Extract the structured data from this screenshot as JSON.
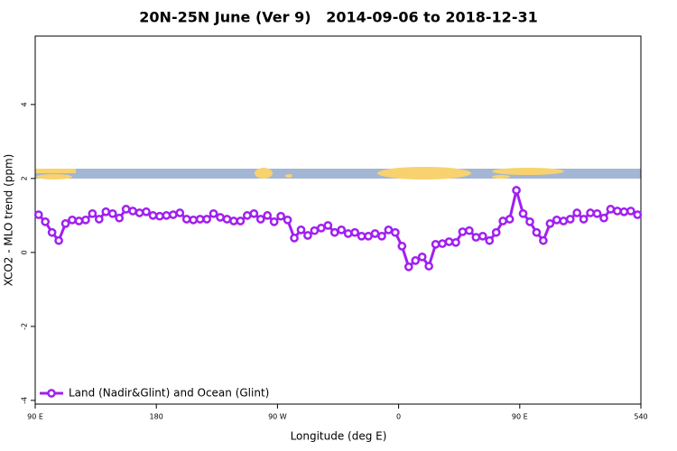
{
  "chart_data": {
    "type": "line",
    "title": "20N-25N June (Ver 9)   2014-09-06 to 2018-12-31",
    "xlabel": "Longitude (deg E)",
    "ylabel": "XCO2 - MLO trend (ppm)",
    "xlim": [
      90,
      540
    ],
    "ylim": [
      -4.1,
      5.85
    ],
    "xticks": [
      {
        "value": 90,
        "label": "90 E"
      },
      180,
      {
        "value": 270,
        "label": "90 W"
      },
      {
        "value": 360,
        "label": "0"
      },
      {
        "value": 450,
        "label": "90 E"
      },
      540
    ],
    "yticks": [
      4,
      2,
      0,
      -2,
      -4
    ],
    "legend": "bottom-left",
    "x": [
      92.5,
      97.5,
      102.5,
      107.5,
      112.5,
      117.5,
      122.5,
      127.5,
      132.5,
      137.5,
      142.5,
      147.5,
      152.5,
      157.5,
      162.5,
      167.5,
      172.5,
      177.5,
      182.5,
      187.5,
      192.5,
      197.5,
      202.5,
      207.5,
      212.5,
      217.5,
      222.5,
      227.5,
      232.5,
      237.5,
      242.5,
      247.5,
      252.5,
      257.5,
      262.5,
      267.5,
      272.5,
      277.5,
      282.5,
      287.5,
      292.5,
      297.5,
      302.5,
      307.5,
      312.5,
      317.5,
      322.5,
      327.5,
      332.5,
      337.5,
      342.5,
      347.5,
      352.5,
      357.5,
      362.5,
      367.5,
      372.5,
      377.5,
      382.5,
      387.5,
      392.5,
      397.5,
      402.5,
      407.5,
      412.5,
      417.5,
      422.5,
      427.5,
      432.5,
      437.5,
      442.5,
      447.5,
      452.5,
      457.5,
      462.5,
      467.5,
      472.5,
      477.5,
      482.5,
      487.5,
      492.5,
      497.5,
      502.5,
      507.5,
      512.5,
      517.5,
      522.5,
      527.5,
      532.5,
      537.5
    ],
    "series": [
      {
        "name": "Land (Nadir&Glint) and Ocean (Glint)",
        "color": "#a020f0",
        "values": [
          1.02,
          0.83,
          0.54,
          0.32,
          0.78,
          0.88,
          0.85,
          0.88,
          1.05,
          0.9,
          1.1,
          1.05,
          0.93,
          1.17,
          1.12,
          1.07,
          1.1,
          1.0,
          0.98,
          1.0,
          1.02,
          1.07,
          0.9,
          0.88,
          0.9,
          0.9,
          1.05,
          0.95,
          0.9,
          0.85,
          0.85,
          1.0,
          1.05,
          0.9,
          1.0,
          0.83,
          0.98,
          0.88,
          0.39,
          0.61,
          0.46,
          0.59,
          0.66,
          0.73,
          0.54,
          0.61,
          0.51,
          0.54,
          0.44,
          0.44,
          0.51,
          0.44,
          0.61,
          0.54,
          0.17,
          -0.39,
          -0.22,
          -0.12,
          -0.37,
          0.22,
          0.24,
          0.29,
          0.27,
          0.56,
          0.59,
          0.41,
          0.44,
          0.32,
          0.54,
          0.85,
          0.9,
          1.68,
          1.05,
          0.83,
          0.54,
          0.32,
          0.78,
          0.88,
          0.85,
          0.9,
          1.07,
          0.9,
          1.07,
          1.05,
          0.93,
          1.17,
          1.12,
          1.1,
          1.12,
          1.02
        ]
      }
    ]
  }
}
